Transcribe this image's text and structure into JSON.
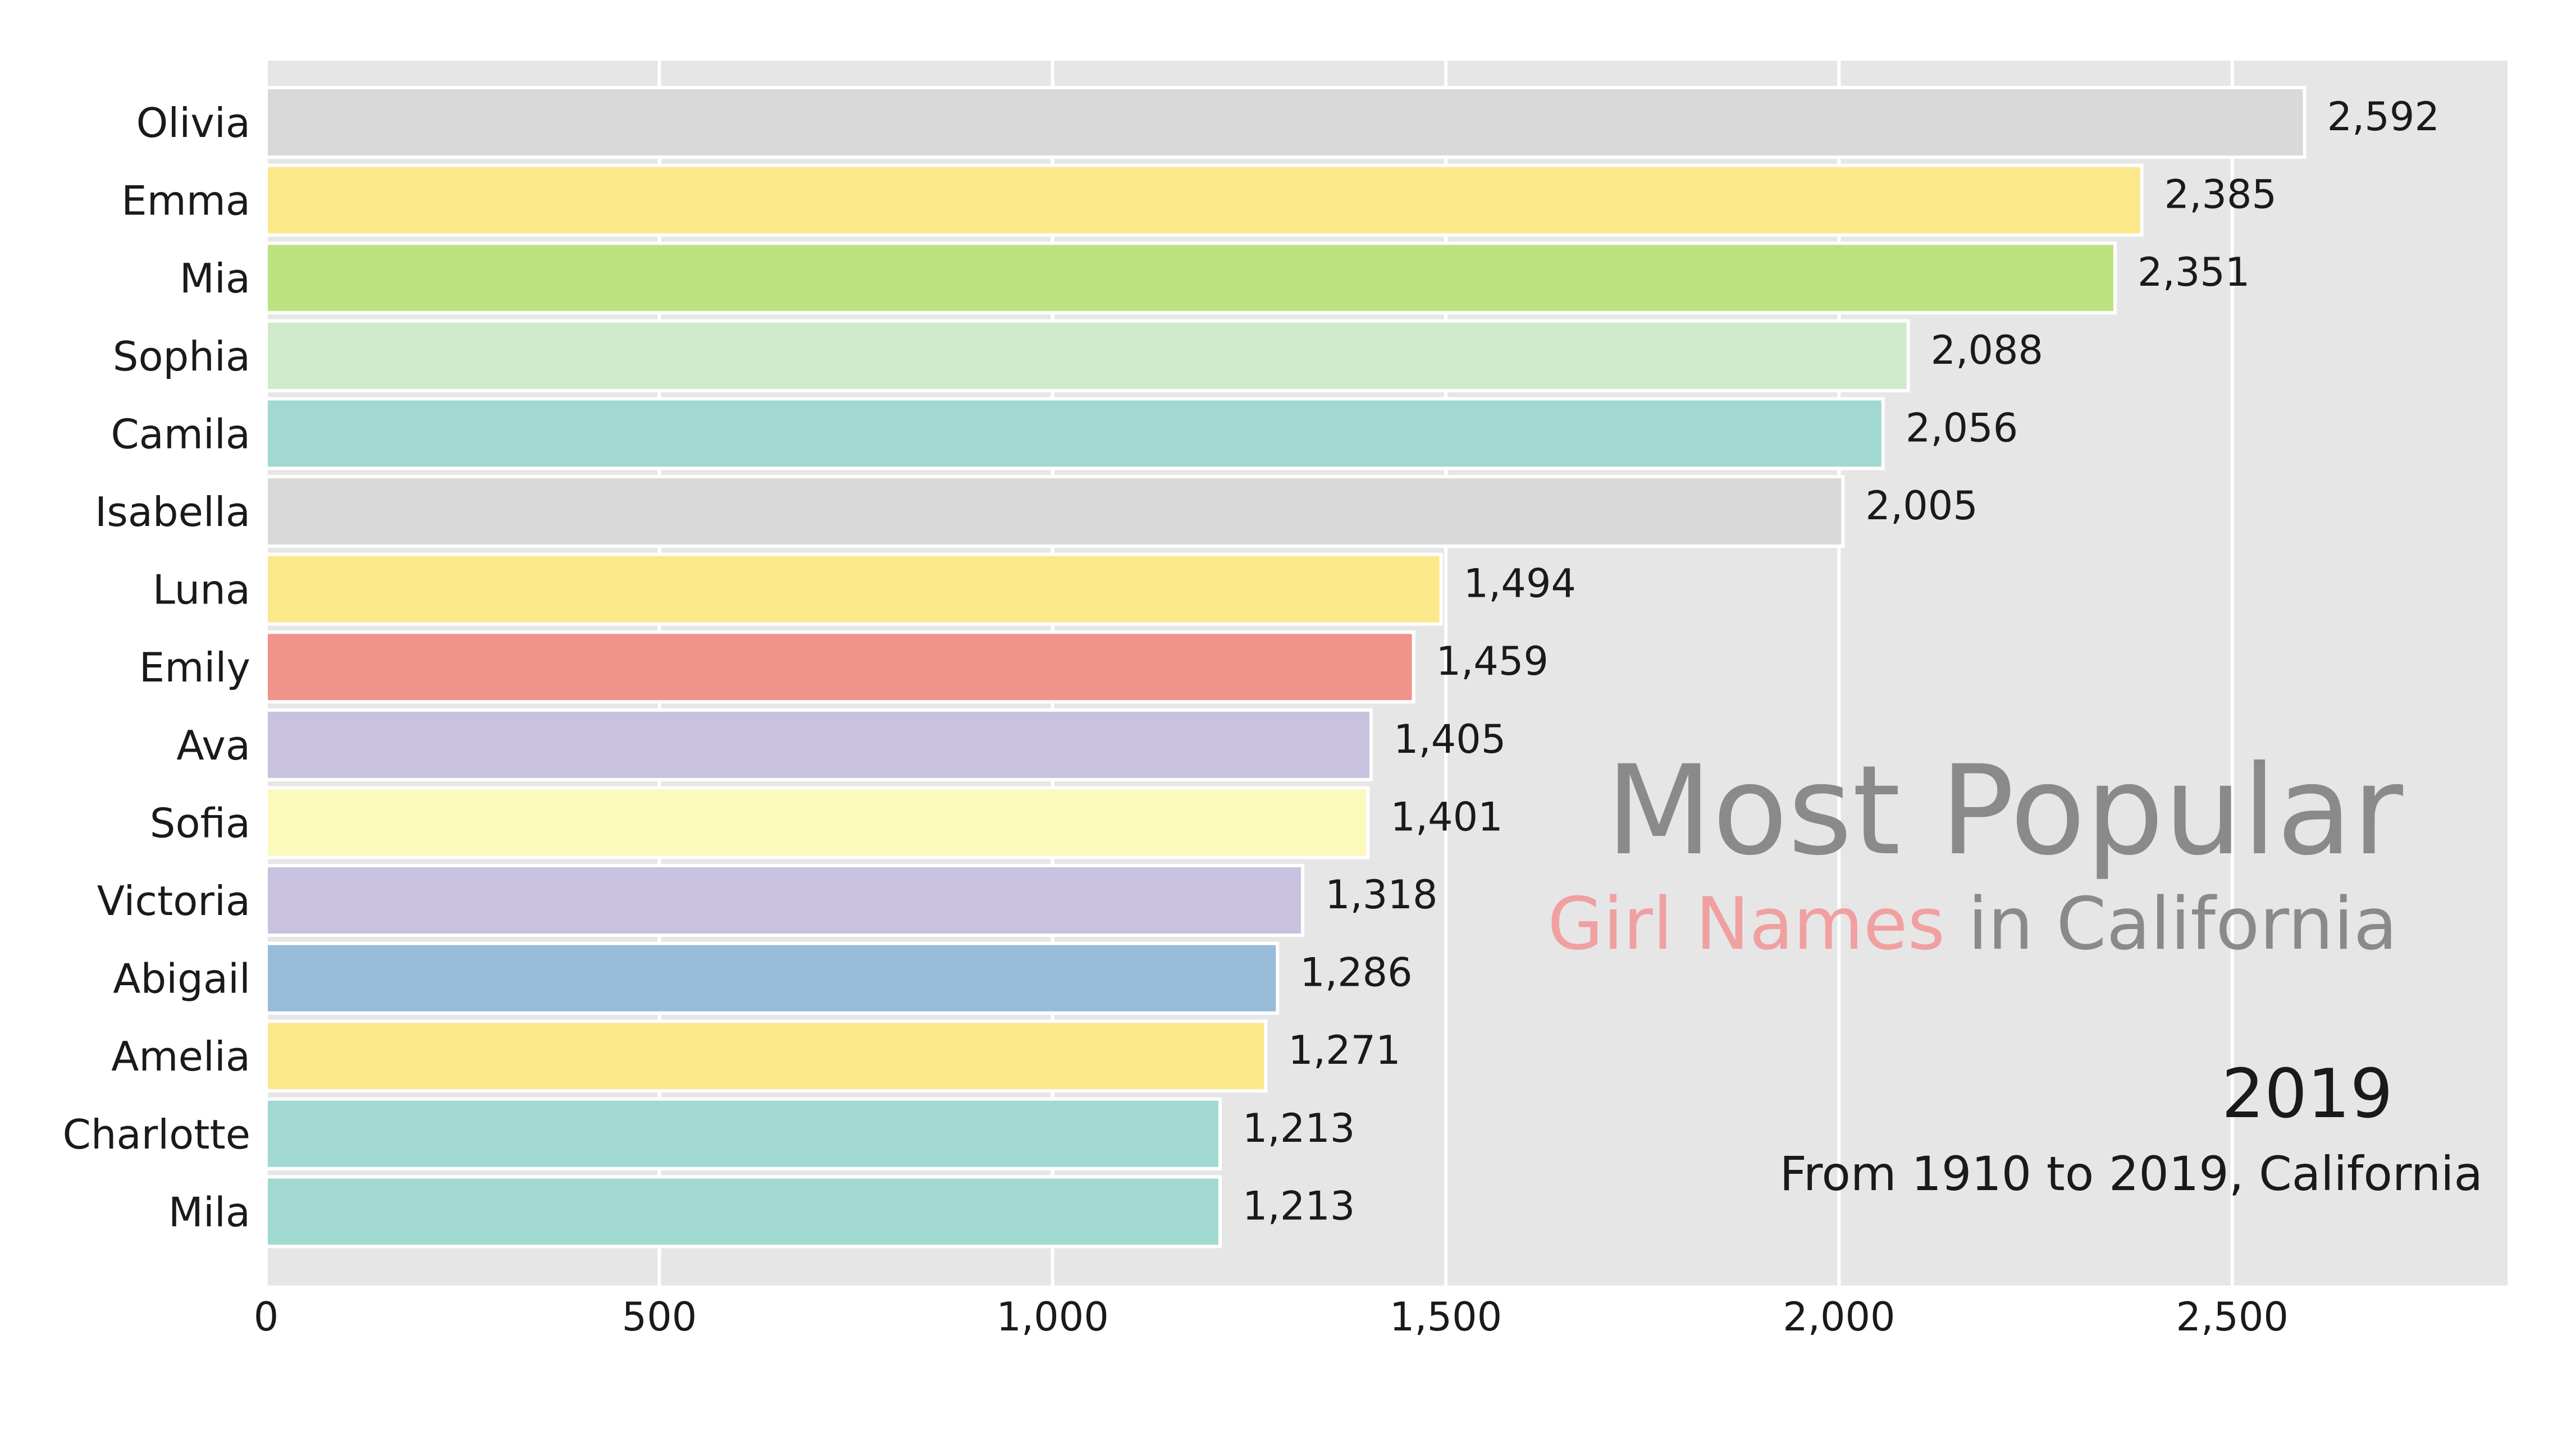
{
  "chart_data": {
    "type": "bar",
    "orientation": "horizontal",
    "title": "Most Popular",
    "subtitle": {
      "highlight": "Girl Names",
      "rest": " in California"
    },
    "year": "2019",
    "caption": "From 1910 to 2019, California",
    "categories": [
      "Olivia",
      "Emma",
      "Mia",
      "Sophia",
      "Camila",
      "Isabella",
      "Luna",
      "Emily",
      "Ava",
      "Sofia",
      "Victoria",
      "Abigail",
      "Amelia",
      "Charlotte",
      "Mila"
    ],
    "values": [
      2592,
      2385,
      2351,
      2088,
      2056,
      2005,
      1494,
      1459,
      1405,
      1401,
      1318,
      1286,
      1271,
      1213,
      1213
    ],
    "value_labels": [
      "2,592",
      "2,385",
      "2,351",
      "2,088",
      "2,056",
      "2,005",
      "1,494",
      "1,459",
      "1,405",
      "1,401",
      "1,318",
      "1,286",
      "1,271",
      "1,213",
      "1,213"
    ],
    "bar_colors": [
      "#d9d9d9",
      "#fbe88a",
      "#bde381",
      "#d0eacc",
      "#a1d9d0",
      "#d9d9d9",
      "#fbe88a",
      "#f0938a",
      "#c8c2de",
      "#fbf9bb",
      "#c8c2de",
      "#98bbd9",
      "#fbe88a",
      "#a1d9d0",
      "#a1d9d0"
    ],
    "x_ticks": [
      0,
      500,
      1000,
      1500,
      2000,
      2500
    ],
    "x_tick_labels": [
      "0",
      "500",
      "1,000",
      "1,500",
      "2,000",
      "2,500"
    ],
    "xlim": [
      0,
      2850
    ],
    "xlabel": "",
    "ylabel": "",
    "grid": true,
    "colors": {
      "plot_background": "#e6e6e6",
      "grid": "#ffffff",
      "title": "#8a8a8a",
      "highlight": "#f0a0a0",
      "text": "#1a1a1a"
    }
  }
}
